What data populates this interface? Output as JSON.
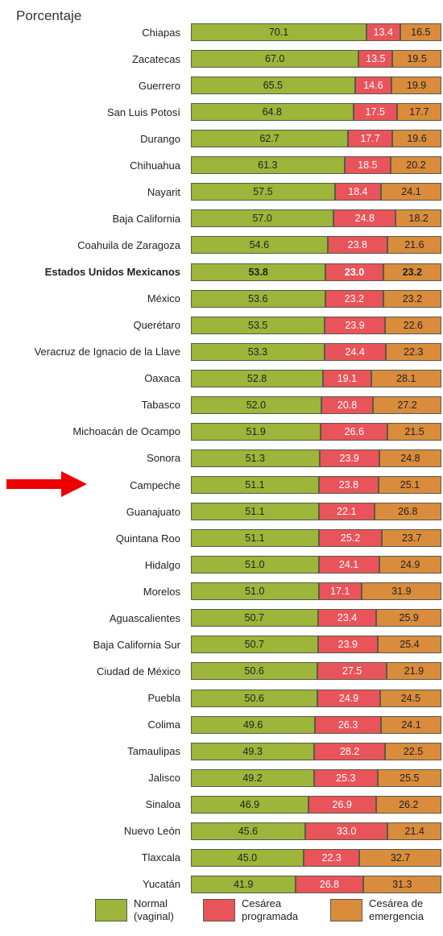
{
  "chart_data": {
    "type": "stacked_barh",
    "axis_title": "Porcentaje",
    "categories": [
      "Chiapas",
      "Zacatecas",
      "Guerrero",
      "San Luis Potosí",
      "Durango",
      "Chihuahua",
      "Nayarit",
      "Baja California",
      "Coahuila de Zaragoza",
      "Estados Unidos Mexicanos",
      "México",
      "Querétaro",
      "Veracruz de Ignacio de la Llave",
      "Oaxaca",
      "Tabasco",
      "Michoacán de Ocampo",
      "Sonora",
      "Campeche",
      "Guanajuato",
      "Quintana Roo",
      "Hidalgo",
      "Morelos",
      "Aguascalientes",
      "Baja California Sur",
      "Ciudad de México",
      "Puebla",
      "Colima",
      "Tamaulipas",
      "Jalisco",
      "Sinaloa",
      "Nuevo León",
      "Tlaxcala",
      "Yucatán"
    ],
    "bold_categories": [
      9
    ],
    "series": [
      {
        "name": "Normal (vaginal)",
        "color": "#9cb53a",
        "text_color": "#222222",
        "values": [
          70.1,
          67.0,
          65.5,
          64.8,
          62.7,
          61.3,
          57.5,
          57.0,
          54.6,
          53.8,
          53.6,
          53.5,
          53.3,
          52.8,
          52.0,
          51.9,
          51.3,
          51.1,
          51.1,
          51.1,
          51.0,
          51.0,
          50.7,
          50.7,
          50.6,
          50.6,
          49.6,
          49.3,
          49.2,
          46.9,
          45.6,
          45.0,
          41.9
        ],
        "value_labels": [
          "70.1",
          "67.0",
          "65.5",
          "64.8",
          "62.7",
          "61.3",
          "57.5",
          "57.0",
          "54.6",
          "53.8",
          "53.6",
          "53.5",
          "53.3",
          "52.8",
          "52.0",
          "51.9",
          "51.3",
          "51.1",
          "51.1",
          "51.1",
          "51.0",
          "51.0",
          "50.7",
          "50.7",
          "50.6",
          "50.6",
          "49.6",
          "49.3",
          "49.2",
          "46.9",
          "45.6",
          "45.0",
          "41.9"
        ]
      },
      {
        "name": "Cesárea programada",
        "color": "#e9545a",
        "text_color": "#ffffff",
        "values": [
          13.4,
          13.5,
          14.6,
          17.5,
          17.7,
          18.5,
          18.4,
          24.8,
          23.8,
          23.0,
          23.2,
          23.9,
          24.4,
          19.1,
          20.8,
          26.6,
          23.9,
          23.8,
          22.1,
          25.2,
          24.1,
          17.1,
          23.4,
          23.9,
          27.5,
          24.9,
          26.3,
          28.2,
          25.3,
          26.9,
          33.0,
          22.3,
          26.8
        ],
        "value_labels": [
          "13.4",
          "13.5",
          "14.6",
          "17.5",
          "17.7",
          "18.5",
          "18.4",
          "24.8",
          "23.8",
          "23.0",
          "23.2",
          "23.9",
          "24.4",
          "19.1",
          "20.8",
          "26.6",
          "23.9",
          "23.8",
          "22.1",
          "25.2",
          "24.1",
          "17.1",
          "23.4",
          "23.9",
          "27.5",
          "24.9",
          "26.3",
          "28.2",
          "25.3",
          "26.9",
          "33.0",
          "22.3",
          "26.8"
        ]
      },
      {
        "name": "Cesárea de emergencia",
        "color": "#d98c3c",
        "text_color": "#222222",
        "values": [
          16.5,
          19.5,
          19.9,
          17.7,
          19.6,
          20.2,
          24.1,
          18.2,
          21.6,
          23.2,
          23.2,
          22.6,
          22.3,
          28.1,
          27.2,
          21.5,
          24.8,
          25.1,
          26.8,
          23.7,
          24.9,
          31.9,
          25.9,
          25.4,
          21.9,
          24.5,
          24.1,
          22.5,
          25.5,
          26.2,
          21.4,
          32.7,
          31.3
        ],
        "value_labels": [
          "16.5",
          "19.5",
          "19.9",
          "17.7",
          "19.6",
          "20.2",
          "24.1",
          "18.2",
          "21.6",
          "23.2",
          "23.2",
          "22.6",
          "22.3",
          "28.1",
          "27.2",
          "21.5",
          "24.8",
          "25.1",
          "26.8",
          "23.7",
          "24.9",
          "31.9",
          "25.9",
          "25.4",
          "21.9",
          "24.5",
          "24.1",
          "22.5",
          "25.5",
          "26.2",
          "21.4",
          "32.7",
          "31.3"
        ]
      }
    ],
    "xlim": [
      0,
      100
    ]
  }
}
